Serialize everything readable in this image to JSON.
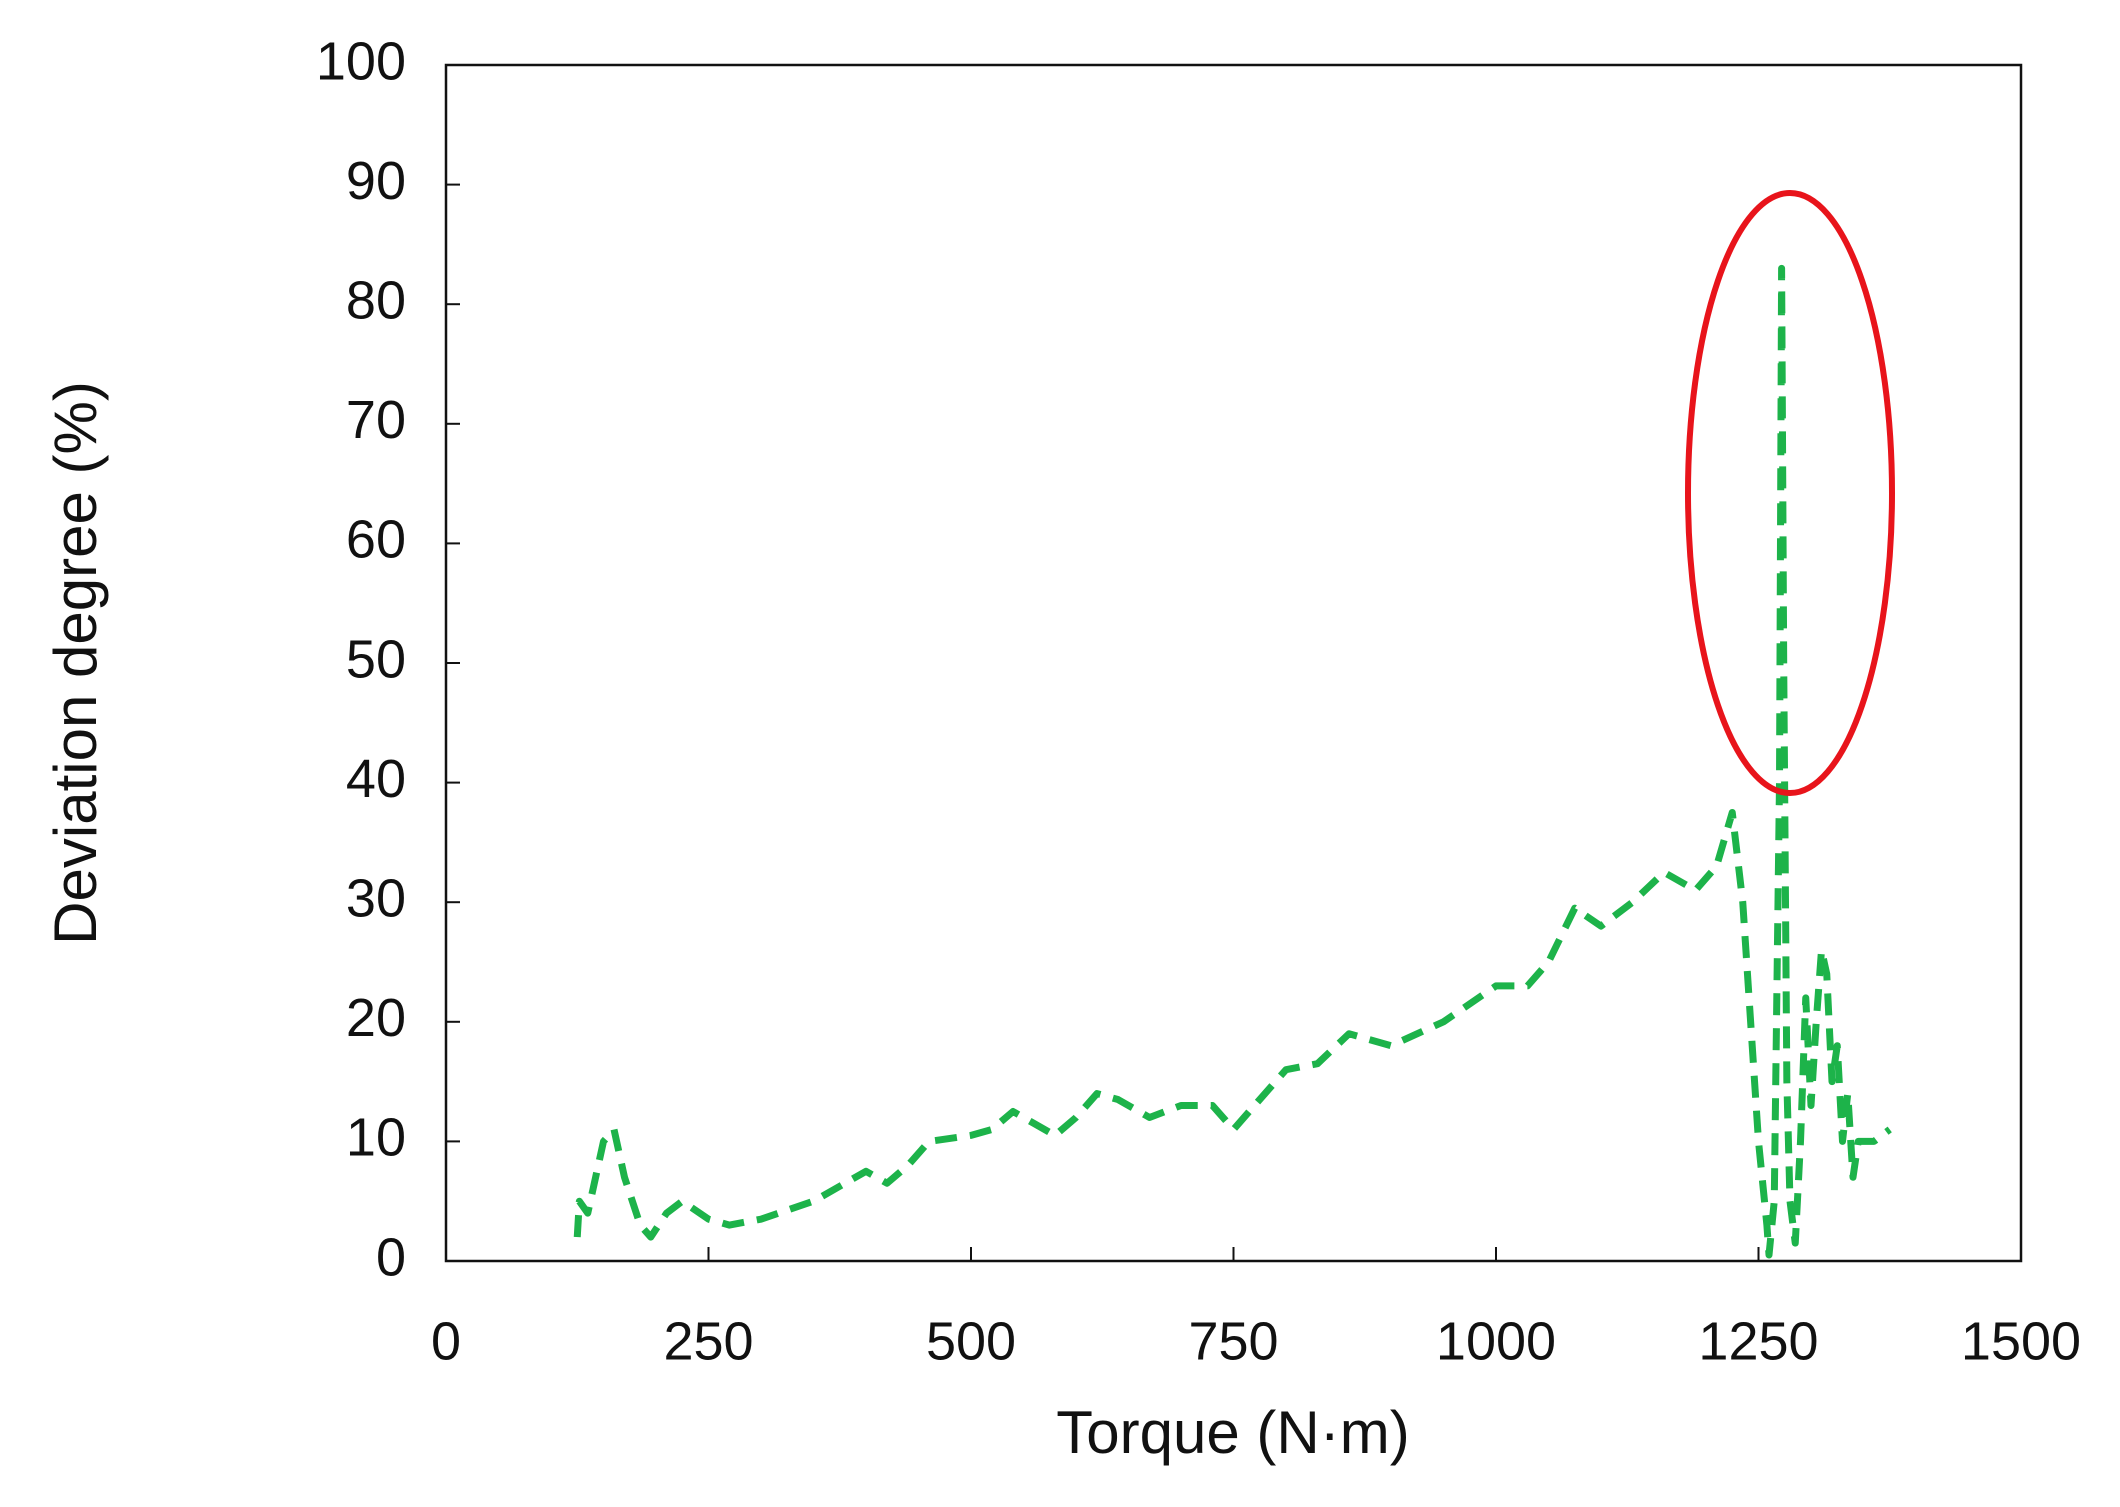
{
  "chart_data": {
    "type": "line",
    "xlabel": "Torque (N·m)",
    "ylabel": "Deviation degree (%)",
    "xlim": [
      0,
      1500
    ],
    "ylim": [
      0,
      100
    ],
    "xticks": [
      0,
      250,
      500,
      750,
      1000,
      1250,
      1500
    ],
    "yticks": [
      0,
      10,
      20,
      30,
      40,
      50,
      60,
      70,
      80,
      90,
      100
    ],
    "grid": false,
    "series": [
      {
        "color": "#1db34a",
        "dashed": true,
        "x": [
          125,
          127,
          135,
          140,
          150,
          160,
          170,
          185,
          195,
          210,
          225,
          250,
          270,
          300,
          350,
          380,
          400,
          420,
          440,
          460,
          500,
          520,
          540,
          560,
          580,
          600,
          620,
          640,
          670,
          700,
          730,
          750,
          780,
          800,
          830,
          860,
          900,
          950,
          1000,
          1030,
          1050,
          1075,
          1100,
          1130,
          1160,
          1190,
          1210,
          1225,
          1235,
          1250,
          1258,
          1260,
          1265,
          1270,
          1272,
          1274,
          1277,
          1280,
          1285,
          1290,
          1295,
          1300,
          1305,
          1310,
          1315,
          1320,
          1325,
          1330,
          1335,
          1340,
          1345,
          1360,
          1375
        ],
        "values": [
          2,
          5,
          4,
          6,
          10,
          11,
          7,
          3,
          2,
          4,
          5,
          3.5,
          3,
          3.5,
          5,
          6.5,
          7.5,
          6.5,
          8,
          10,
          10.5,
          11,
          12.5,
          11.5,
          10.5,
          12,
          14,
          13.5,
          12,
          13,
          13,
          11,
          14,
          16,
          16.5,
          19,
          18,
          20,
          23,
          23,
          25,
          29.5,
          28,
          30,
          32.5,
          31,
          33,
          37.5,
          30,
          10,
          3,
          0.5,
          5,
          40,
          83,
          50,
          15,
          5,
          1.5,
          10,
          22,
          13,
          20,
          26,
          24,
          15,
          18,
          10,
          14,
          7,
          10,
          10,
          11
        ]
      }
    ]
  }
}
